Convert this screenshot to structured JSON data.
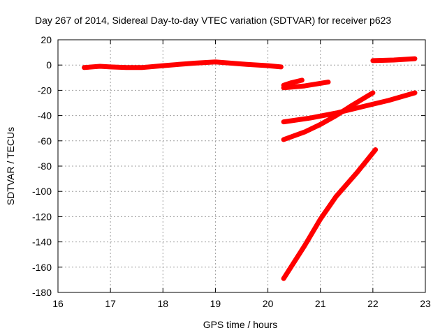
{
  "chart_data": {
    "type": "line",
    "title": "Day 267 of 2014, Sidereal Day-to-day VTEC variation (SDTVAR) for receiver p623",
    "xlabel": "GPS time / hours",
    "ylabel": "SDTVAR / TECUs",
    "xlim": [
      16,
      23
    ],
    "ylim": [
      -180,
      20
    ],
    "xticks": [
      16,
      17,
      18,
      19,
      20,
      21,
      22,
      23
    ],
    "yticks": [
      20,
      0,
      -20,
      -40,
      -60,
      -80,
      -100,
      -120,
      -140,
      -160,
      -180
    ],
    "grid": true,
    "legend": "none",
    "line_color": "#ff0000",
    "series": [
      {
        "points": [
          [
            16.5,
            -2
          ],
          [
            16.8,
            -1
          ],
          [
            17.0,
            -1.5
          ],
          [
            17.3,
            -2
          ],
          [
            17.6,
            -2
          ],
          [
            18.0,
            -0.5
          ],
          [
            18.3,
            0.5
          ],
          [
            18.6,
            1.5
          ],
          [
            19.0,
            2.5
          ],
          [
            19.3,
            1.5
          ],
          [
            19.6,
            0.5
          ],
          [
            20.0,
            -0.5
          ],
          [
            20.25,
            -1.5
          ]
        ]
      },
      {
        "points": [
          [
            20.3,
            -16
          ],
          [
            20.45,
            -14
          ],
          [
            20.65,
            -12
          ]
        ]
      },
      {
        "points": [
          [
            20.3,
            -18
          ],
          [
            20.7,
            -16.5
          ],
          [
            21.15,
            -13.5
          ]
        ]
      },
      {
        "points": [
          [
            20.3,
            -45
          ],
          [
            20.8,
            -42
          ],
          [
            21.3,
            -38
          ],
          [
            21.8,
            -33
          ],
          [
            22.3,
            -28
          ],
          [
            22.8,
            -22
          ]
        ]
      },
      {
        "points": [
          [
            20.3,
            -59
          ],
          [
            20.7,
            -53
          ],
          [
            21.0,
            -47
          ],
          [
            21.3,
            -40
          ],
          [
            21.6,
            -32
          ],
          [
            22.0,
            -22
          ]
        ]
      },
      {
        "points": [
          [
            20.3,
            -169
          ],
          [
            20.7,
            -143
          ],
          [
            21.0,
            -122
          ],
          [
            21.3,
            -104
          ],
          [
            21.7,
            -85
          ],
          [
            22.05,
            -67
          ]
        ]
      },
      {
        "points": [
          [
            22.0,
            3.5
          ],
          [
            22.4,
            4
          ],
          [
            22.8,
            5
          ]
        ]
      }
    ]
  }
}
